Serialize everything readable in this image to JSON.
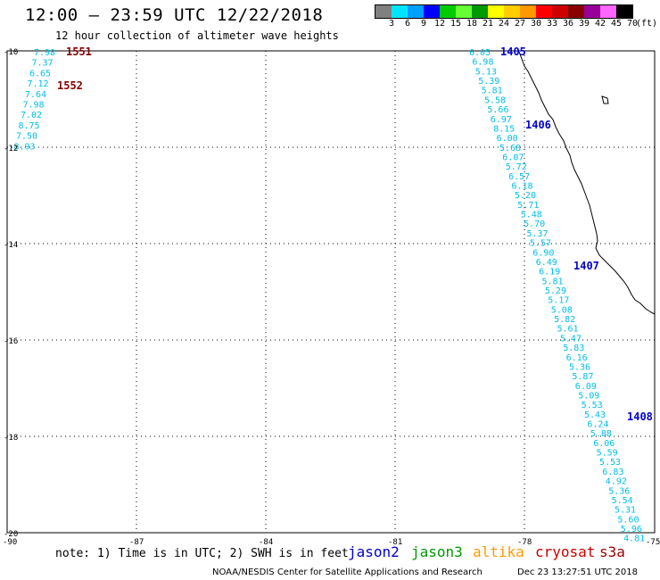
{
  "header": {
    "title": "12:00 — 23:59 UTC 12/22/2018",
    "subtitle": "12 hour collection of altimeter wave heights"
  },
  "colorbar": {
    "colors": [
      "#808080",
      "#00e5ff",
      "#00a0ff",
      "#0000ff",
      "#00cc00",
      "#66ff33",
      "#009900",
      "#ffff00",
      "#ffcc00",
      "#ff9900",
      "#ff0000",
      "#cc0000",
      "#880000",
      "#990099",
      "#ff66ff",
      "#000000"
    ],
    "labels": [
      "3",
      "6",
      "9",
      "12",
      "15",
      "18",
      "21",
      "24",
      "27",
      "30",
      "33",
      "36",
      "39",
      "42",
      "45",
      "70"
    ],
    "unit": "(ft)"
  },
  "map": {
    "lat_ticks": [
      "-10",
      "-12",
      "-14",
      "-16",
      "-18",
      "-20"
    ],
    "lon_ticks": [
      "-90",
      "-87",
      "-84",
      "-81",
      "-78",
      "-75"
    ],
    "west_track": {
      "values": [
        "7.98",
        "7.37",
        "6.65",
        "7.12",
        "7.64",
        "7.98",
        "7.02",
        "8.75",
        "7.50",
        "8.93"
      ],
      "time_labels": [
        "1551",
        "1552"
      ],
      "time_label_color": "#880000"
    },
    "east_track": {
      "values": [
        "6.05",
        "6.98",
        "5.13",
        "5.39",
        "5.81",
        "5.58",
        "5.66",
        "6.97",
        "8.15",
        "6.00",
        "5.68",
        "6.07",
        "5.72",
        "6.57",
        "6.18",
        "5.20",
        "5.71",
        "5.48",
        "5.70",
        "5.37",
        "5.57",
        "6.90",
        "6.49",
        "6.19",
        "5.81",
        "5.29",
        "5.17",
        "5.08",
        "5.82",
        "5.61",
        "5.47",
        "5.83",
        "6.16",
        "5.36",
        "5.87",
        "6.09",
        "5.09",
        "5.53",
        "5.43",
        "6.24",
        "5.88",
        "6.06",
        "5.59",
        "5.53",
        "6.83",
        "4.92",
        "5.36",
        "5.54",
        "5.31",
        "5.60",
        "5.96",
        "4.81"
      ],
      "time_labels": [
        "1405",
        "1406",
        "1407",
        "1408"
      ],
      "time_label_color": "#0000cc"
    },
    "value_color": "#00bfe6"
  },
  "footer": {
    "note": "note: 1) Time is in UTC; 2) SWH is in feet",
    "satellites": [
      {
        "name": "jason2",
        "color": "#0000cc"
      },
      {
        "name": "jason3",
        "color": "#009900"
      },
      {
        "name": "altika",
        "color": "#ff9900"
      },
      {
        "name": "cryosat",
        "color": "#cc0000"
      },
      {
        "name": "s3a",
        "color": "#990000"
      }
    ],
    "credit": "NOAA/NESDIS Center for Satellite Applications and Research",
    "timestamp": "Dec 23 13:27:51 UTC 2018"
  }
}
